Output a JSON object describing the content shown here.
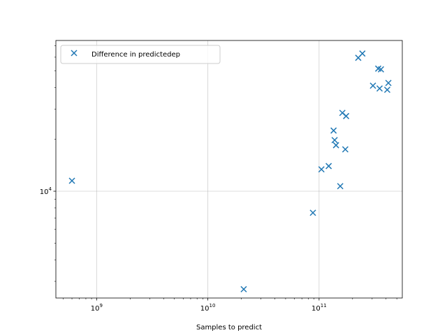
{
  "chart_data": {
    "type": "scatter",
    "xscale": "log",
    "yscale": "log",
    "xlim": [
      430000000.0,
      560000000000.0
    ],
    "ylim": [
      2400,
      75000
    ],
    "xlabel": "Samples to predict",
    "ylabel": "",
    "grid": true,
    "legend_placement": "upper-left",
    "x_ticks": [
      {
        "value": 1000000000.0,
        "base": "10",
        "exp": "9"
      },
      {
        "value": 10000000000.0,
        "base": "10",
        "exp": "10"
      },
      {
        "value": 100000000000.0,
        "base": "10",
        "exp": "11"
      }
    ],
    "y_ticks": [
      {
        "value": 10000,
        "base": "10",
        "exp": "4"
      }
    ],
    "marker_color": "#1f77b4",
    "series": [
      {
        "name": "Difference in predictedep",
        "x": [
          600000000.0,
          21000000000.0,
          88000000000.0,
          105000000000.0,
          122000000000.0,
          135000000000.0,
          138000000000.0,
          142000000000.0,
          155000000000.0,
          162000000000.0,
          172000000000.0,
          175000000000.0,
          225000000000.0,
          245000000000.0,
          305000000000.0,
          340000000000.0,
          350000000000.0,
          360000000000.0,
          410000000000.0,
          420000000000.0
        ],
        "y": [
          11500,
          2700,
          7500,
          13400,
          14000,
          22500,
          19800,
          18500,
          10700,
          28500,
          17500,
          27300,
          59500,
          63000,
          41000,
          51500,
          39500,
          51000,
          38800,
          42500
        ]
      }
    ]
  }
}
